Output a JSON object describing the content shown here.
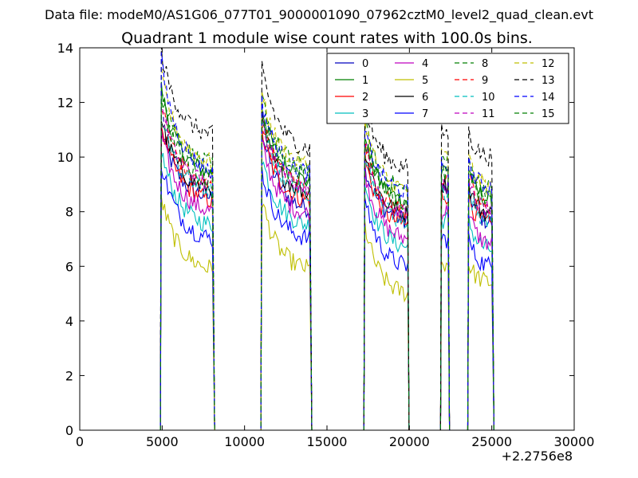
{
  "header": {
    "data_file": "Data file: modeM0/AS1G06_077T01_9000001090_07962cztM0_level2_quad_clean.evt"
  },
  "chart_data": {
    "type": "line",
    "title": "Quadrant 1 module wise count rates with 100.0s bins.",
    "xlabel": "",
    "ylabel": "",
    "x_offset_label": "+2.2756e8",
    "xlim": [
      0,
      30000
    ],
    "ylim": [
      0,
      14
    ],
    "x_ticks": [
      0,
      5000,
      10000,
      15000,
      20000,
      25000,
      30000
    ],
    "y_ticks": [
      0,
      2,
      4,
      6,
      8,
      10,
      12,
      14
    ],
    "grid": false,
    "legend_placement": "top-right",
    "legend_columns": 4,
    "segments": [
      {
        "start": 4950,
        "end": 8100
      },
      {
        "start": 11050,
        "end": 14000
      },
      {
        "start": 17300,
        "end": 19900
      },
      {
        "start": 21950,
        "end": 22350
      },
      {
        "start": 23600,
        "end": 25050
      }
    ],
    "series": [
      {
        "name": "0",
        "color": "#0000bf",
        "dash": "solid",
        "levels": [
          11.0,
          10.0,
          9.8,
          9.3,
          8.8,
          7.6
        ]
      },
      {
        "name": "1",
        "color": "#007f00",
        "dash": "solid",
        "levels": [
          12.5,
          10.9,
          10.8,
          10.0,
          9.6,
          8.4
        ]
      },
      {
        "name": "2",
        "color": "#ff0000",
        "dash": "solid",
        "levels": [
          11.2,
          9.9,
          10.1,
          9.1,
          8.6,
          7.5
        ]
      },
      {
        "name": "3",
        "color": "#00bfbf",
        "dash": "solid",
        "levels": [
          10.2,
          9.0,
          9.2,
          8.3,
          7.7,
          6.6
        ]
      },
      {
        "name": "4",
        "color": "#bf00bf",
        "dash": "solid",
        "levels": [
          10.8,
          9.5,
          9.6,
          8.6,
          8.0,
          6.8
        ]
      },
      {
        "name": "5",
        "color": "#bfbf00",
        "dash": "solid",
        "levels": [
          8.5,
          7.4,
          7.6,
          6.6,
          6.1,
          5.4
        ]
      },
      {
        "name": "6",
        "color": "#000000",
        "dash": "solid",
        "levels": [
          11.4,
          10.3,
          10.4,
          9.5,
          9.0,
          7.9
        ]
      },
      {
        "name": "7",
        "color": "#0000ff",
        "dash": "solid",
        "levels": [
          9.8,
          8.5,
          8.7,
          7.6,
          7.0,
          6.0
        ]
      },
      {
        "name": "8",
        "color": "#007f00",
        "dash": "dashed",
        "levels": [
          12.8,
          11.2,
          11.3,
          10.4,
          9.9,
          8.8
        ]
      },
      {
        "name": "9",
        "color": "#ff0000",
        "dash": "dashed",
        "levels": [
          12.0,
          10.4,
          10.6,
          9.6,
          9.2,
          8.1
        ]
      },
      {
        "name": "10",
        "color": "#00bfbf",
        "dash": "dashed",
        "levels": [
          11.6,
          10.2,
          10.4,
          9.2,
          8.7,
          7.7
        ]
      },
      {
        "name": "11",
        "color": "#bf00bf",
        "dash": "dashed",
        "levels": [
          11.9,
          10.5,
          10.6,
          9.5,
          9.0,
          8.0
        ]
      },
      {
        "name": "12",
        "color": "#bfbf00",
        "dash": "dashed",
        "levels": [
          13.0,
          11.3,
          11.4,
          10.4,
          10.0,
          8.9
        ]
      },
      {
        "name": "13",
        "color": "#000000",
        "dash": "dashed",
        "levels": [
          13.8,
          12.3,
          12.0,
          11.2,
          10.9,
          10.0
        ]
      },
      {
        "name": "14",
        "color": "#0000ff",
        "dash": "dashed",
        "levels": [
          13.5,
          11.0,
          11.1,
          10.3,
          9.7,
          8.9
        ]
      },
      {
        "name": "15",
        "color": "#007f00",
        "dash": "dashed",
        "levels": [
          12.3,
          10.7,
          10.9,
          9.9,
          9.4,
          8.5
        ]
      }
    ]
  }
}
